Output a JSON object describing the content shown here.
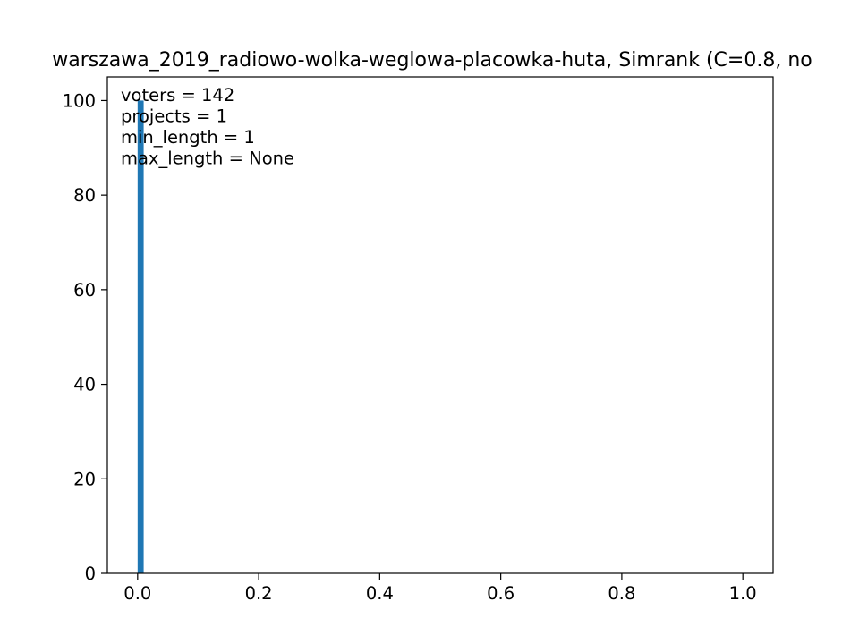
{
  "chart_data": {
    "type": "bar",
    "title": "warszawa_2019_radiowo-wolka-weglowa-placowka-huta, Simrank (C=0.8, no",
    "xlabel": "",
    "ylabel": "",
    "xlim": [
      -0.05,
      1.05
    ],
    "ylim": [
      0,
      105
    ],
    "x_ticks": [
      0.0,
      0.2,
      0.4,
      0.6,
      0.8,
      1.0
    ],
    "x_tick_labels": [
      "0.0",
      "0.2",
      "0.4",
      "0.6",
      "0.8",
      "1.0"
    ],
    "y_ticks": [
      0,
      20,
      40,
      60,
      80,
      100
    ],
    "y_tick_labels": [
      "0",
      "20",
      "40",
      "60",
      "80",
      "100"
    ],
    "bar_color": "#1f77b4",
    "bins": [
      {
        "x_start": 0.0,
        "x_end": 0.01,
        "value": 100
      }
    ],
    "annotations": [
      "voters = 142",
      "projects = 1",
      "min_length = 1",
      "max_length = None"
    ],
    "grid": false,
    "legend": "none"
  }
}
